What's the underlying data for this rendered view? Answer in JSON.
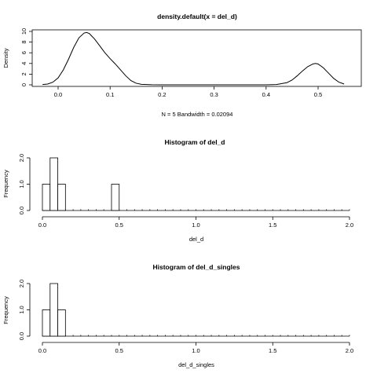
{
  "chart_data": [
    {
      "type": "line",
      "title": "density.default(x = del_d)",
      "xlabel": "N = 5   Bandwidth = 0.02094",
      "ylabel": "Density",
      "xlim": [
        -0.04,
        0.56
      ],
      "ylim": [
        0,
        10
      ],
      "x_ticks": [
        "0.0",
        "0.1",
        "0.2",
        "0.3",
        "0.4",
        "0.5"
      ],
      "y_ticks": [
        "0",
        "2",
        "4",
        "6",
        "8",
        "10"
      ],
      "series": [
        {
          "x": [
            -0.03,
            -0.02,
            -0.01,
            0.0,
            0.01,
            0.02,
            0.03,
            0.04,
            0.05,
            0.055,
            0.06,
            0.07,
            0.08,
            0.09,
            0.1,
            0.11,
            0.12,
            0.13,
            0.14,
            0.15,
            0.16,
            0.18,
            0.2,
            0.3,
            0.4,
            0.42,
            0.44,
            0.45,
            0.46,
            0.47,
            0.48,
            0.49,
            0.495,
            0.5,
            0.51,
            0.52,
            0.53,
            0.54,
            0.55
          ],
          "y": [
            0.05,
            0.15,
            0.5,
            1.3,
            2.8,
            4.8,
            7.0,
            8.8,
            9.7,
            9.8,
            9.6,
            8.6,
            7.3,
            6.0,
            4.9,
            3.9,
            2.8,
            1.7,
            0.8,
            0.3,
            0.1,
            0.02,
            0.0,
            0.0,
            0.0,
            0.05,
            0.4,
            0.9,
            1.7,
            2.6,
            3.4,
            3.9,
            4.0,
            3.9,
            3.2,
            2.2,
            1.2,
            0.5,
            0.15
          ]
        }
      ]
    },
    {
      "type": "bar",
      "title": "Histogram of del_d",
      "xlabel": "del_d",
      "ylabel": "Frequency",
      "xlim": [
        0,
        2
      ],
      "ylim": [
        0,
        2
      ],
      "x_ticks": [
        "0.0",
        "0.5",
        "1.0",
        "1.5",
        "2.0"
      ],
      "y_ticks": [
        "0.0",
        "1.0",
        "2.0"
      ],
      "bin_width": 0.05,
      "bins": [
        {
          "start": 0.0,
          "count": 1
        },
        {
          "start": 0.05,
          "count": 2
        },
        {
          "start": 0.1,
          "count": 1
        },
        {
          "start": 0.45,
          "count": 1
        }
      ]
    },
    {
      "type": "bar",
      "title": "Histogram of del_d_singles",
      "xlabel": "del_d_singles",
      "ylabel": "Frequency",
      "xlim": [
        0,
        2
      ],
      "ylim": [
        0,
        2
      ],
      "x_ticks": [
        "0.0",
        "0.5",
        "1.0",
        "1.5",
        "2.0"
      ],
      "y_ticks": [
        "0.0",
        "1.0",
        "2.0"
      ],
      "bin_width": 0.05,
      "bins": [
        {
          "start": 0.0,
          "count": 1
        },
        {
          "start": 0.05,
          "count": 2
        },
        {
          "start": 0.1,
          "count": 1
        }
      ]
    }
  ]
}
